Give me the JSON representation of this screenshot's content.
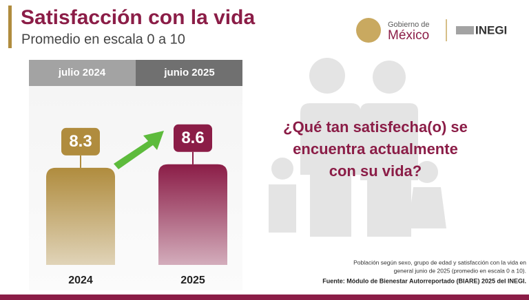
{
  "chart_data": {
    "type": "bar",
    "title": "Satisfacción con la vida",
    "subtitle": "Promedio en escala 0 a 10",
    "column_headers": [
      "julio 2024",
      "junio 2025"
    ],
    "categories": [
      "2024",
      "2025"
    ],
    "values": [
      8.3,
      8.6
    ],
    "colors": [
      "#b08c3e",
      "#8b1d47"
    ],
    "ylim": [
      0,
      10
    ]
  },
  "question_lines": [
    "¿Qué tan satisfecha(o) se",
    "encuentra actualmente",
    "con su vida?"
  ],
  "notes": [
    "Población según sexo, grupo de edad y satisfacción con la vida en",
    "general junio de 2025 (promedio en escala 0 a 10)."
  ],
  "source": "Fuente: Módulo de Bienestar Autorreportado (BIARE) 2025 del INEGI.",
  "logos": {
    "gobierno_line1": "Gobierno de",
    "gobierno_line2": "México",
    "inegi": "INEGI"
  }
}
